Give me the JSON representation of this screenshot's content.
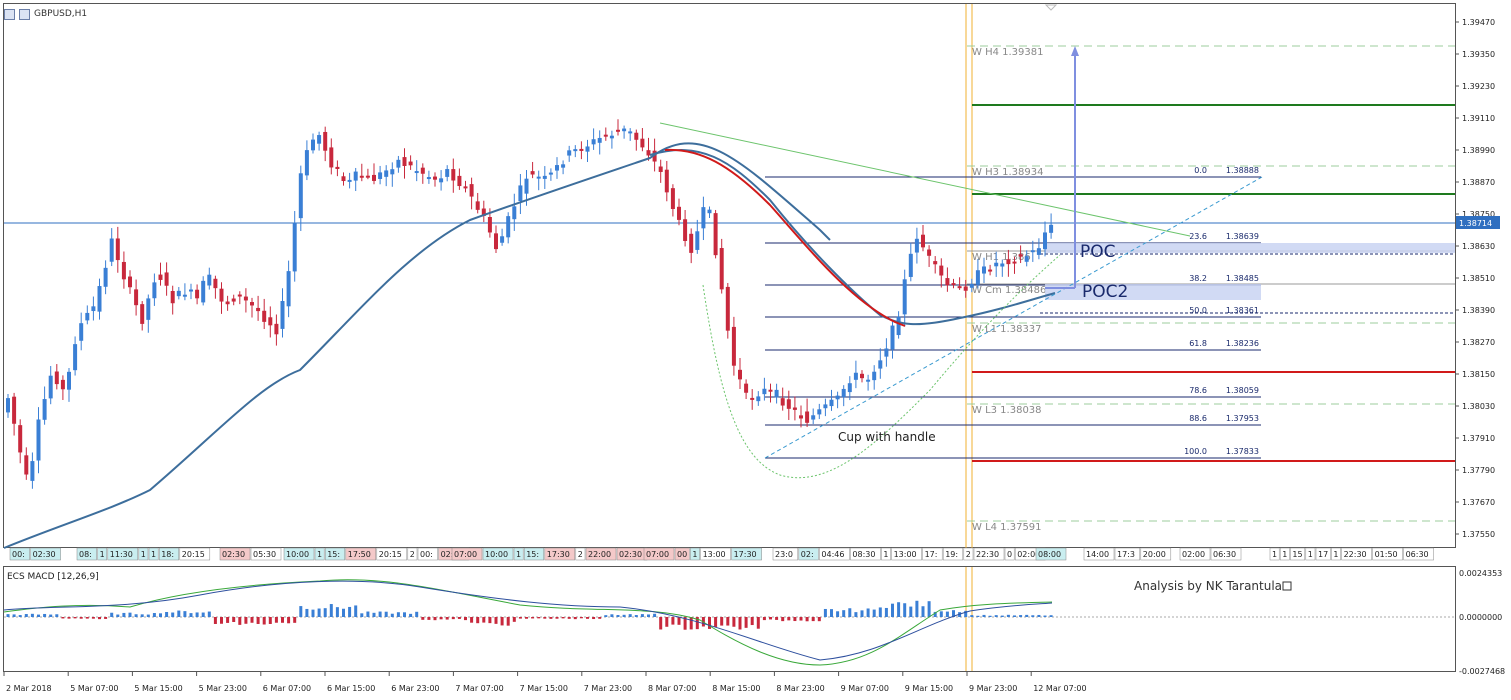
{
  "window": {
    "title": "GBPUSD,H1"
  },
  "macd": {
    "title": "ECS MACD [12,26,9]",
    "scale": [
      "0.0024353",
      "0.0000000",
      "-0.0027468"
    ]
  },
  "watermark": "Analysis by NK Tarantula",
  "price_axis": [
    "1.39470",
    "1.39350",
    "1.39230",
    "1.39110",
    "1.38990",
    "1.38870",
    "1.38750",
    "1.38630",
    "1.38510",
    "1.38390",
    "1.38270",
    "1.38150",
    "1.38030",
    "1.37910",
    "1.37790",
    "1.37670",
    "1.37550"
  ],
  "current_price": "1.38714",
  "pivots": [
    {
      "label": "W  H4 1.39381"
    },
    {
      "label": "W  H3 1.38934"
    },
    {
      "label": "W  H1 1.386"
    },
    {
      "label": "W  Cm 1.38486"
    },
    {
      "label": "W  L1 1.38337"
    },
    {
      "label": "W  L3 1.38038"
    },
    {
      "label": "W  L4 1.37591"
    }
  ],
  "fib_levels": [
    {
      "pct": "0.0",
      "price": "1.38888"
    },
    {
      "pct": "23.6",
      "price": "1.38639"
    },
    {
      "pct": "38.2",
      "price": "1.38485"
    },
    {
      "pct": "50.0",
      "price": "1.38361"
    },
    {
      "pct": "61.8",
      "price": "1.38236"
    },
    {
      "pct": "78.6",
      "price": "1.38059"
    },
    {
      "pct": "88.6",
      "price": "1.37953"
    },
    {
      "pct": "100.0",
      "price": "1.37833"
    }
  ],
  "annotations": {
    "poc": "POC",
    "poc2": "POC2",
    "pattern": "Cup with handle"
  },
  "session_labels": [
    {
      "t": "00:",
      "c": "#c9eef0"
    },
    {
      "t": "02:30",
      "c": "#c9eef0"
    },
    {
      "t": "08:",
      "c": "#c9eef0"
    },
    {
      "t": "1",
      "c": "#c9eef0"
    },
    {
      "t": "11:30",
      "c": "#c9eef0"
    },
    {
      "t": "1",
      "c": "#c9eef0"
    },
    {
      "t": "1",
      "c": "#c9eef0"
    },
    {
      "t": "18:",
      "c": "#c9eef0"
    },
    {
      "t": "20:15",
      "c": "#fff"
    },
    {
      "t": "02:30",
      "c": "#f4c9c9"
    },
    {
      "t": "05:30",
      "c": "#fff"
    },
    {
      "t": "10:00",
      "c": "#c9eef0"
    },
    {
      "t": "1",
      "c": "#c9eef0"
    },
    {
      "t": "15:",
      "c": "#c9eef0"
    },
    {
      "t": "17:50",
      "c": "#f4c9c9"
    },
    {
      "t": "20:15",
      "c": "#fff"
    },
    {
      "t": "2",
      "c": "#fff"
    },
    {
      "t": "00:",
      "c": "#fff"
    },
    {
      "t": "02:30",
      "c": "#f4c9c9"
    },
    {
      "t": "07:00",
      "c": "#f4c9c9"
    },
    {
      "t": "10:00",
      "c": "#c9eef0"
    },
    {
      "t": "1",
      "c": "#c9eef0"
    },
    {
      "t": "15:",
      "c": "#c9eef0"
    },
    {
      "t": "17:30",
      "c": "#f4c9c9"
    },
    {
      "t": "2",
      "c": "#fff"
    },
    {
      "t": "22:00",
      "c": "#f4c9c9"
    },
    {
      "t": "02:30",
      "c": "#f4c9c9"
    },
    {
      "t": "07:00",
      "c": "#f4c9c9"
    },
    {
      "t": "00",
      "c": "#f4c9c9"
    },
    {
      "t": "1",
      "c": "#c9eef0"
    },
    {
      "t": "13:00",
      "c": "#fff"
    },
    {
      "t": "17:30",
      "c": "#c9eef0"
    },
    {
      "t": "23:0",
      "c": "#fff"
    },
    {
      "t": "02:",
      "c": "#c9eef0"
    },
    {
      "t": "04:46",
      "c": "#fff"
    },
    {
      "t": "08:30",
      "c": "#fff"
    },
    {
      "t": "1",
      "c": "#fff"
    },
    {
      "t": "13:00",
      "c": "#fff"
    },
    {
      "t": "17:",
      "c": "#fff"
    },
    {
      "t": "19:",
      "c": "#fff"
    },
    {
      "t": "2",
      "c": "#fff"
    },
    {
      "t": "22:30",
      "c": "#fff"
    },
    {
      "t": "0",
      "c": "#fff"
    },
    {
      "t": "02:00",
      "c": "#fff"
    },
    {
      "t": "08:00",
      "c": "#c9eef0"
    },
    {
      "t": "14:00",
      "c": "#fff"
    },
    {
      "t": "17:3",
      "c": "#fff"
    },
    {
      "t": "20:00",
      "c": "#fff"
    },
    {
      "t": "02:00",
      "c": "#fff"
    },
    {
      "t": "06:30",
      "c": "#fff"
    },
    {
      "t": "1",
      "c": "#fff"
    },
    {
      "t": "1",
      "c": "#fff"
    },
    {
      "t": "15",
      "c": "#fff"
    },
    {
      "t": "1",
      "c": "#fff"
    },
    {
      "t": "17",
      "c": "#fff"
    },
    {
      "t": "1",
      "c": "#fff"
    },
    {
      "t": "22:30",
      "c": "#fff"
    },
    {
      "t": "01:50",
      "c": "#fff"
    },
    {
      "t": "06:30",
      "c": "#fff"
    }
  ],
  "time_axis": [
    "2 Mar 2018",
    "5 Mar 07:00",
    "5 Mar 15:00",
    "5 Mar 23:00",
    "6 Mar 07:00",
    "6 Mar 15:00",
    "6 Mar 23:00",
    "7 Mar 07:00",
    "7 Mar 15:00",
    "7 Mar 23:00",
    "8 Mar 07:00",
    "8 Mar 15:00",
    "8 Mar 23:00",
    "9 Mar 07:00",
    "9 Mar 15:00",
    "9 Mar 23:00",
    "12 Mar 07:00"
  ],
  "colors": {
    "bull": "#3a7fd5",
    "bear": "#c8283c",
    "ma_blue": "#3d6e9c",
    "ma_red": "#d11a1a",
    "green_line": "#1e7a1e",
    "vline": "#f0b030"
  }
}
